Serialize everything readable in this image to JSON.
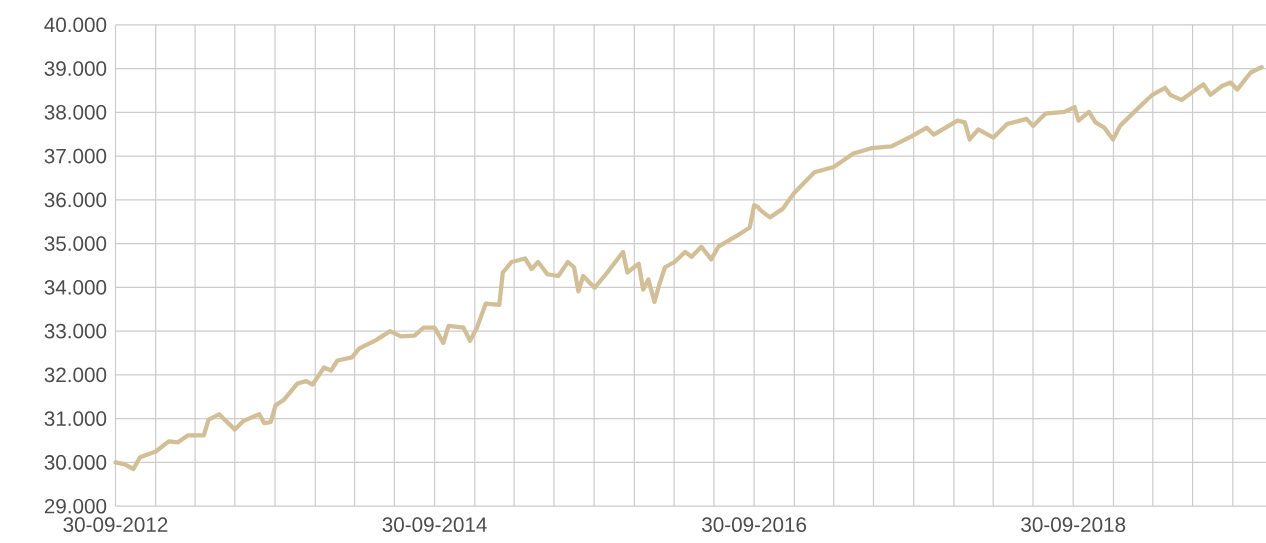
{
  "chart_data": {
    "type": "line",
    "x": [
      "2012-09-30",
      "2012-10-20",
      "2012-11-10",
      "2012-11-25",
      "2012-12-31",
      "2013-01-30",
      "2013-02-20",
      "2013-03-15",
      "2013-04-20",
      "2013-05-01",
      "2013-05-25",
      "2013-06-30",
      "2013-07-20",
      "2013-08-25",
      "2013-09-05",
      "2013-09-20",
      "2013-10-01",
      "2013-10-20",
      "2013-11-20",
      "2013-12-10",
      "2013-12-25",
      "2014-01-20",
      "2014-02-05",
      "2014-02-20",
      "2014-03-25",
      "2014-04-10",
      "2014-05-20",
      "2014-06-20",
      "2014-07-15",
      "2014-08-15",
      "2014-09-05",
      "2014-09-30",
      "2014-10-20",
      "2014-11-01",
      "2014-12-05",
      "2014-12-20",
      "2015-01-05",
      "2015-01-25",
      "2015-02-25",
      "2015-03-05",
      "2015-03-25",
      "2015-04-25",
      "2015-05-10",
      "2015-05-25",
      "2015-06-15",
      "2015-07-10",
      "2015-08-01",
      "2015-08-15",
      "2015-08-25",
      "2015-09-05",
      "2015-10-01",
      "2015-10-30",
      "2015-12-05",
      "2015-12-15",
      "2016-01-10",
      "2016-01-20",
      "2016-02-01",
      "2016-02-15",
      "2016-02-25",
      "2016-03-10",
      "2016-04-01",
      "2016-04-25",
      "2016-05-10",
      "2016-06-01",
      "2016-06-24",
      "2016-07-10",
      "2016-08-20",
      "2016-09-20",
      "2016-09-30",
      "2016-10-08",
      "2016-10-15",
      "2016-11-05",
      "2016-12-05",
      "2016-12-30",
      "2017-02-15",
      "2017-03-31",
      "2017-05-15",
      "2017-06-25",
      "2017-08-10",
      "2017-09-25",
      "2017-10-30",
      "2017-11-15",
      "2018-01-08",
      "2018-01-25",
      "2018-02-05",
      "2018-02-25",
      "2018-03-31",
      "2018-05-01",
      "2018-06-15",
      "2018-06-30",
      "2018-07-28",
      "2018-09-10",
      "2018-10-03",
      "2018-10-12",
      "2018-11-05",
      "2018-11-20",
      "2018-12-10",
      "2018-12-30",
      "2019-01-15",
      "2019-02-25",
      "2019-03-30",
      "2019-04-28",
      "2019-05-10",
      "2019-06-05",
      "2019-07-02",
      "2019-07-25",
      "2019-08-10",
      "2019-09-05",
      "2019-09-25",
      "2019-10-10",
      "2019-11-10",
      "2019-12-05"
    ],
    "series": [
      {
        "color": "#d2bf95",
        "values": [
          30000,
          29960,
          29850,
          30120,
          30250,
          30480,
          30460,
          30620,
          30620,
          30980,
          31100,
          30750,
          30950,
          31100,
          30900,
          30920,
          31300,
          31430,
          31800,
          31860,
          31780,
          32170,
          32100,
          32330,
          32400,
          32600,
          32800,
          33000,
          32880,
          32900,
          33080,
          33080,
          32730,
          33120,
          33080,
          32780,
          33080,
          33630,
          33600,
          34340,
          34580,
          34660,
          34420,
          34580,
          34300,
          34260,
          34580,
          34460,
          33910,
          34260,
          33990,
          34340,
          34810,
          34340,
          34540,
          33950,
          34180,
          33670,
          34030,
          34460,
          34580,
          34810,
          34700,
          34930,
          34640,
          34930,
          35170,
          35370,
          35880,
          35840,
          35760,
          35600,
          35800,
          36150,
          36630,
          36750,
          37060,
          37180,
          37220,
          37450,
          37650,
          37490,
          37810,
          37770,
          37380,
          37610,
          37420,
          37730,
          37850,
          37690,
          37970,
          38010,
          38120,
          37810,
          38010,
          37770,
          37650,
          37380,
          37690,
          38090,
          38400,
          38560,
          38400,
          38280,
          38480,
          38640,
          38400,
          38600,
          38680,
          38520,
          38910,
          39030
        ]
      }
    ],
    "xlim": [
      "2012-09-30",
      "2019-12-15"
    ],
    "xticks": [
      {
        "value": "2012-09-30",
        "label": "30-09-2012"
      },
      {
        "value": "2012-12-31",
        "label": null
      },
      {
        "value": "2013-03-31",
        "label": null
      },
      {
        "value": "2013-06-30",
        "label": null
      },
      {
        "value": "2013-09-30",
        "label": null
      },
      {
        "value": "2013-12-31",
        "label": null
      },
      {
        "value": "2014-03-31",
        "label": null
      },
      {
        "value": "2014-06-30",
        "label": null
      },
      {
        "value": "2014-09-30",
        "label": "30-09-2014"
      },
      {
        "value": "2014-12-31",
        "label": null
      },
      {
        "value": "2015-03-31",
        "label": null
      },
      {
        "value": "2015-06-30",
        "label": null
      },
      {
        "value": "2015-09-30",
        "label": null
      },
      {
        "value": "2015-12-31",
        "label": null
      },
      {
        "value": "2016-03-31",
        "label": null
      },
      {
        "value": "2016-06-30",
        "label": null
      },
      {
        "value": "2016-09-30",
        "label": "30-09-2016"
      },
      {
        "value": "2016-12-31",
        "label": null
      },
      {
        "value": "2017-03-31",
        "label": null
      },
      {
        "value": "2017-06-30",
        "label": null
      },
      {
        "value": "2017-09-30",
        "label": null
      },
      {
        "value": "2017-12-31",
        "label": null
      },
      {
        "value": "2018-03-31",
        "label": null
      },
      {
        "value": "2018-06-30",
        "label": null
      },
      {
        "value": "2018-09-30",
        "label": "30-09-2018"
      },
      {
        "value": "2018-12-31",
        "label": null
      },
      {
        "value": "2019-03-31",
        "label": null
      },
      {
        "value": "2019-06-30",
        "label": null
      },
      {
        "value": "2019-09-30",
        "label": null
      }
    ],
    "ylim": [
      29000,
      40000
    ],
    "yticks": [
      {
        "value": 29000,
        "label": "29.000"
      },
      {
        "value": 30000,
        "label": "30.000"
      },
      {
        "value": 31000,
        "label": "31.000"
      },
      {
        "value": 32000,
        "label": "32.000"
      },
      {
        "value": 33000,
        "label": "33.000"
      },
      {
        "value": 34000,
        "label": "34.000"
      },
      {
        "value": 35000,
        "label": "35.000"
      },
      {
        "value": 36000,
        "label": "36.000"
      },
      {
        "value": 37000,
        "label": "37.000"
      },
      {
        "value": 38000,
        "label": "38.000"
      },
      {
        "value": 39000,
        "label": "39.000"
      },
      {
        "value": 40000,
        "label": "40.000"
      }
    ],
    "grid": true
  }
}
